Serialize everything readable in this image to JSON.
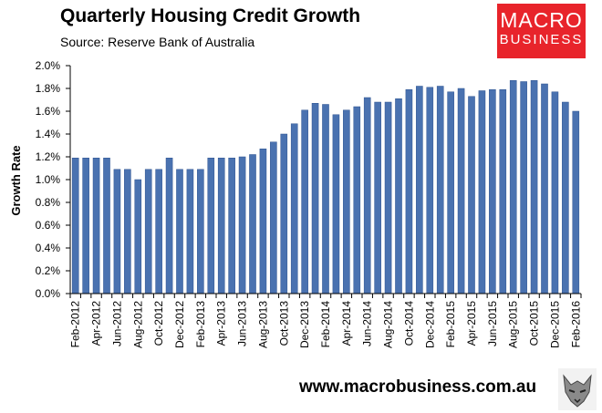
{
  "header": {
    "title": "Quarterly Housing Credit Growth",
    "subtitle": "Source: Reserve Bank of Australia"
  },
  "logo": {
    "line1": "MACRO",
    "line2": "BUSINESS"
  },
  "footer": {
    "url": "www.macrobusiness.com.au"
  },
  "colors": {
    "bar": "#4a72b0",
    "bar_edge": "#2f5490",
    "brand_red": "#e8242b"
  },
  "chart_data": {
    "type": "bar",
    "ylabel": "Growth Rate",
    "ylim": [
      0,
      2.0
    ],
    "yticks": [
      "0.0%",
      "0.2%",
      "0.4%",
      "0.6%",
      "0.8%",
      "1.0%",
      "1.2%",
      "1.4%",
      "1.6%",
      "1.8%",
      "2.0%"
    ],
    "grid": false,
    "categories": [
      "Feb-2012",
      "Mar-2012",
      "Apr-2012",
      "May-2012",
      "Jun-2012",
      "Jul-2012",
      "Aug-2012",
      "Sep-2012",
      "Oct-2012",
      "Nov-2012",
      "Dec-2012",
      "Jan-2013",
      "Feb-2013",
      "Mar-2013",
      "Apr-2013",
      "May-2013",
      "Jun-2013",
      "Jul-2013",
      "Aug-2013",
      "Sep-2013",
      "Oct-2013",
      "Nov-2013",
      "Dec-2013",
      "Jan-2014",
      "Feb-2014",
      "Mar-2014",
      "Apr-2014",
      "May-2014",
      "Jun-2014",
      "Jul-2014",
      "Aug-2014",
      "Sep-2014",
      "Oct-2014",
      "Nov-2014",
      "Dec-2014",
      "Jan-2015",
      "Feb-2015",
      "Mar-2015",
      "Apr-2015",
      "May-2015",
      "Jun-2015",
      "Jul-2015",
      "Aug-2015",
      "Sep-2015",
      "Oct-2015",
      "Nov-2015",
      "Dec-2015",
      "Jan-2016",
      "Feb-2016"
    ],
    "xtick_labels": [
      "Feb-2012",
      "Apr-2012",
      "Jun-2012",
      "Aug-2012",
      "Oct-2012",
      "Dec-2012",
      "Feb-2013",
      "Apr-2013",
      "Jun-2013",
      "Aug-2013",
      "Oct-2013",
      "Dec-2013",
      "Feb-2014",
      "Apr-2014",
      "Jun-2014",
      "Aug-2014",
      "Oct-2014",
      "Dec-2014",
      "Feb-2015",
      "Apr-2015",
      "Jun-2015",
      "Aug-2015",
      "Oct-2015",
      "Dec-2015",
      "Feb-2016"
    ],
    "values": [
      1.19,
      1.19,
      1.19,
      1.19,
      1.09,
      1.09,
      1.0,
      1.09,
      1.09,
      1.19,
      1.09,
      1.09,
      1.09,
      1.19,
      1.19,
      1.19,
      1.2,
      1.22,
      1.27,
      1.33,
      1.4,
      1.49,
      1.61,
      1.67,
      1.66,
      1.57,
      1.61,
      1.64,
      1.72,
      1.68,
      1.68,
      1.71,
      1.79,
      1.82,
      1.81,
      1.82,
      1.77,
      1.8,
      1.73,
      1.78,
      1.79,
      1.79,
      1.87,
      1.86,
      1.87,
      1.84,
      1.77,
      1.68,
      1.6
    ]
  }
}
